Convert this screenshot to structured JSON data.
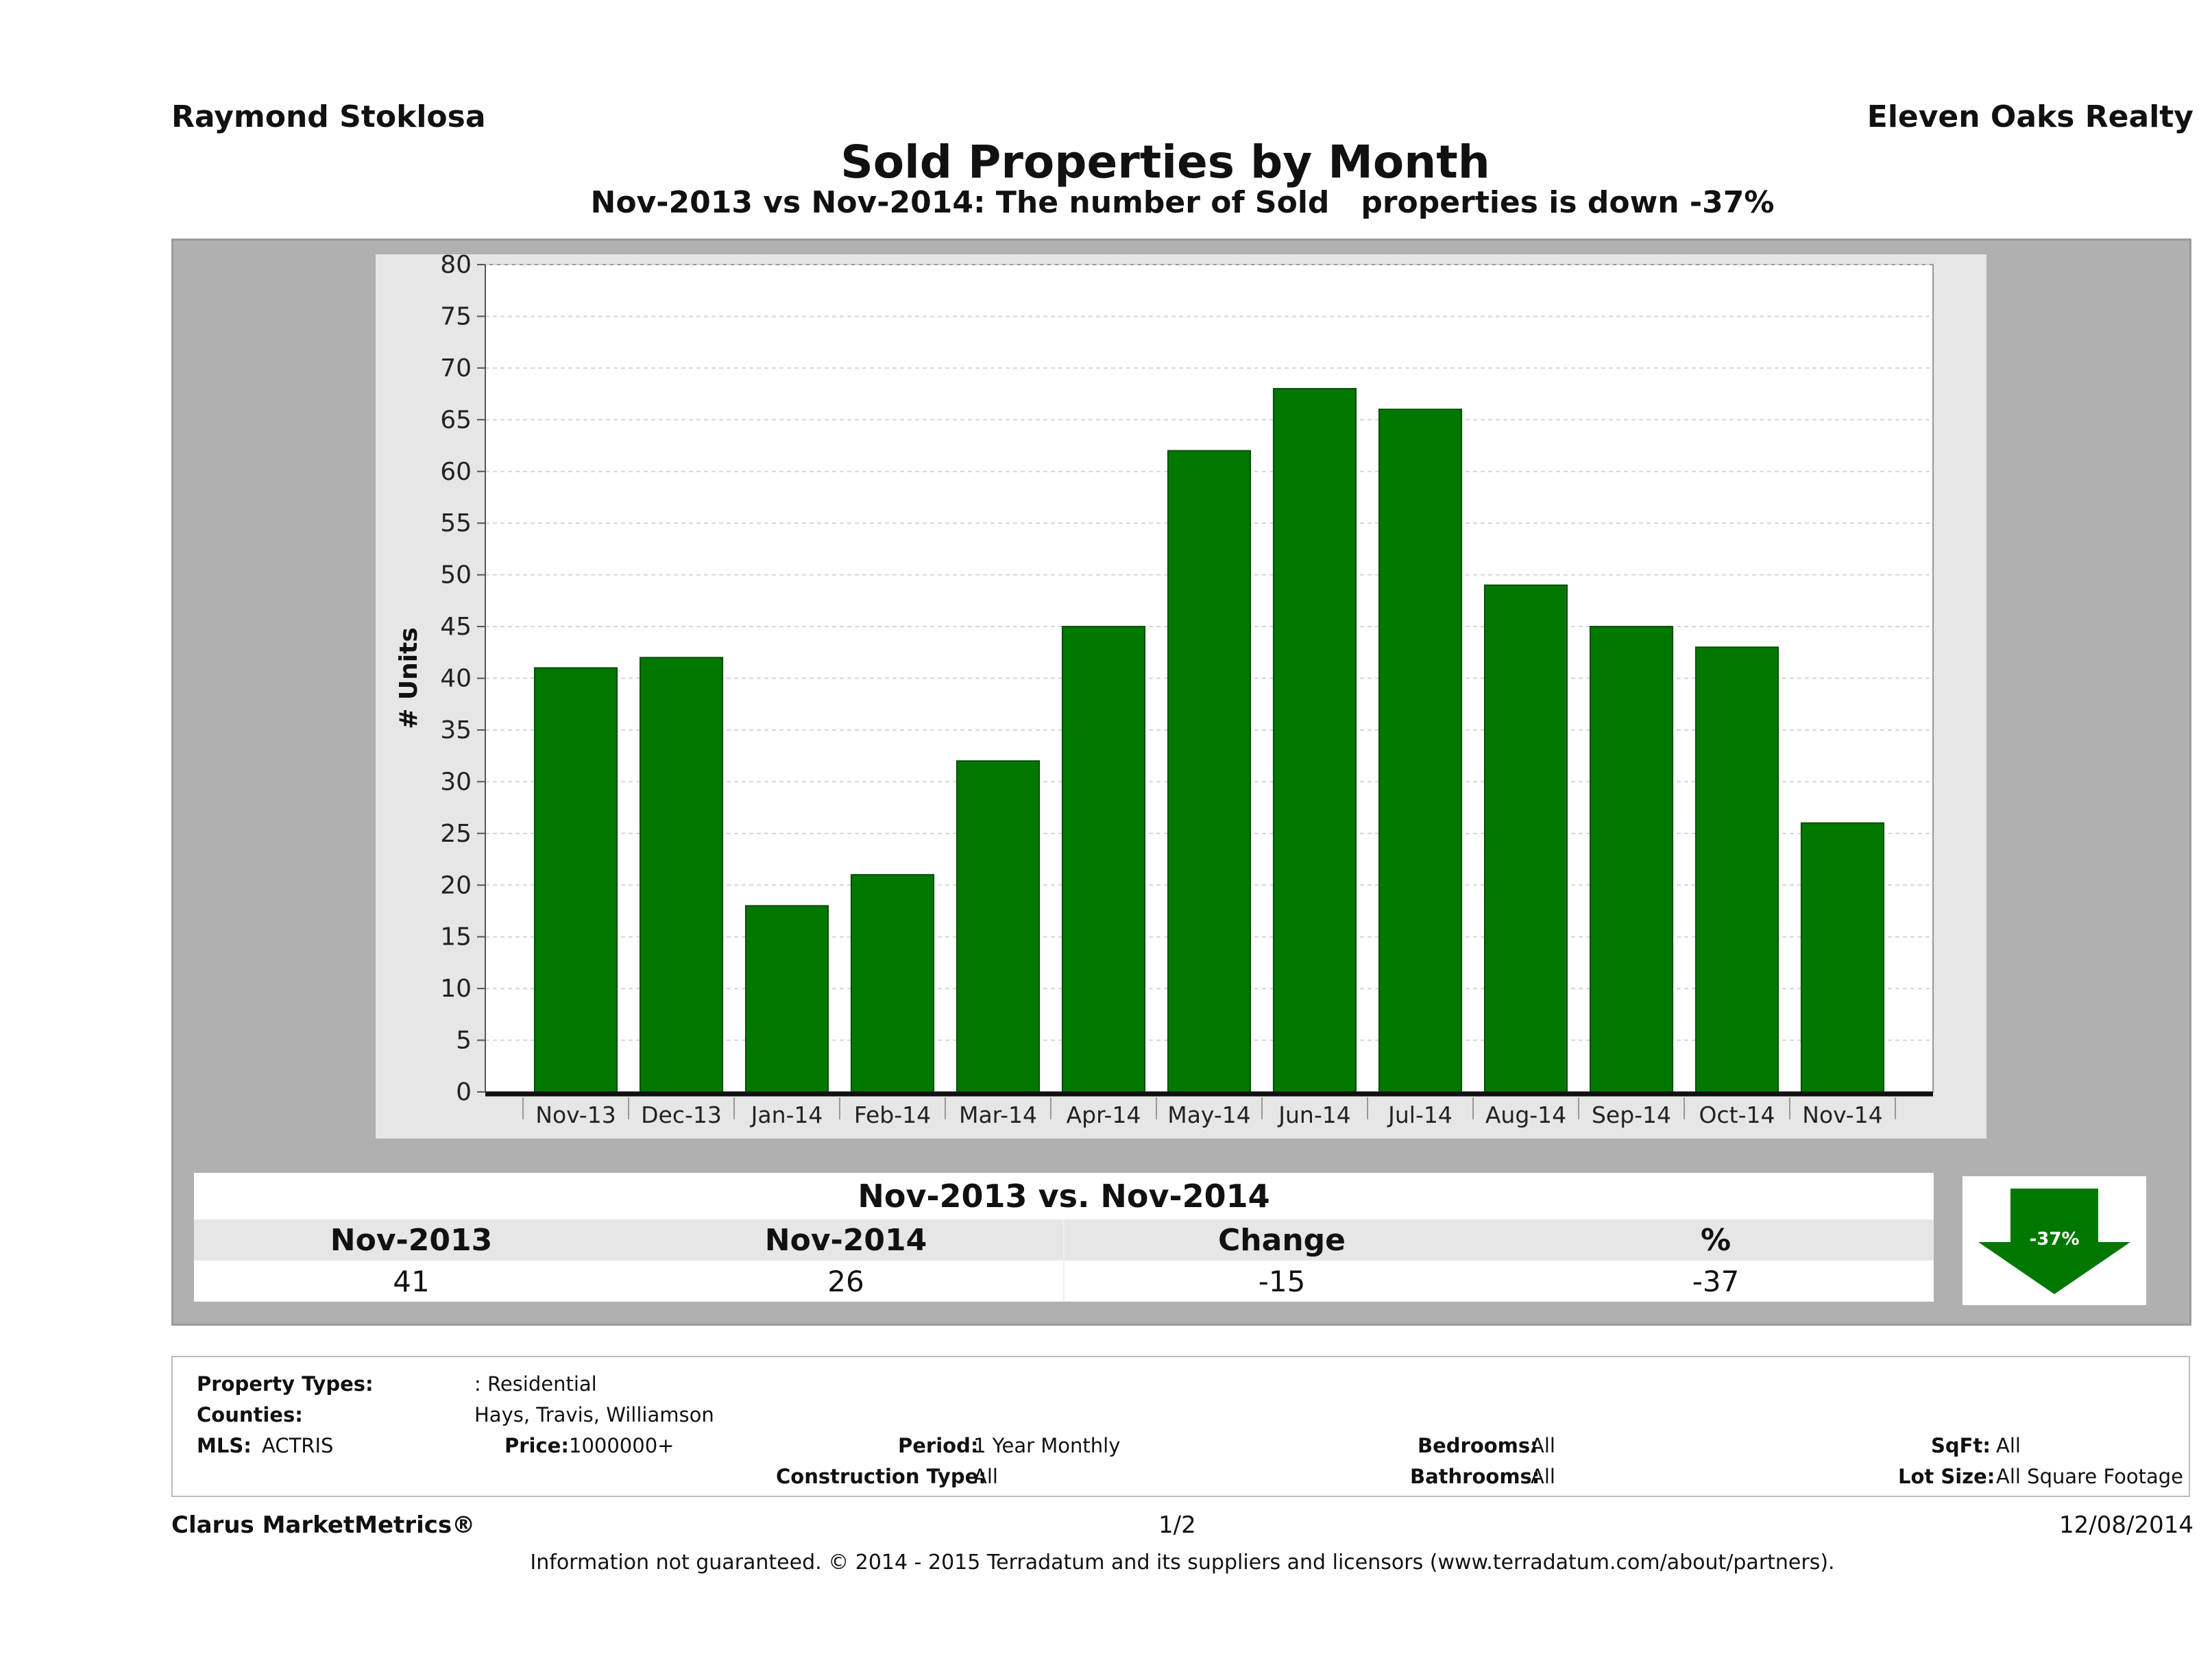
{
  "header": {
    "agent": "Raymond Stoklosa",
    "company": "Eleven Oaks Realty",
    "title": "Sold Properties by Month",
    "subtitle": "Nov-2013 vs Nov-2014: The number of Sold   properties is down -37%"
  },
  "chart_data": {
    "type": "bar",
    "categories": [
      "Nov-13",
      "Dec-13",
      "Jan-14",
      "Feb-14",
      "Mar-14",
      "Apr-14",
      "May-14",
      "Jun-14",
      "Jul-14",
      "Aug-14",
      "Sep-14",
      "Oct-14",
      "Nov-14"
    ],
    "values": [
      41,
      42,
      18,
      21,
      32,
      45,
      62,
      68,
      66,
      49,
      45,
      43,
      26
    ],
    "ylabel": "# Units",
    "ylim": [
      0,
      80
    ],
    "yticks": [
      0,
      5,
      10,
      15,
      20,
      25,
      30,
      35,
      40,
      45,
      50,
      55,
      60,
      65,
      70,
      75,
      80
    ],
    "bar_color": "#007800",
    "grid": true
  },
  "summary": {
    "title": "Nov-2013 vs. Nov-2014",
    "headers": [
      "Nov-2013",
      "Nov-2014",
      "Change",
      "%"
    ],
    "values": [
      "41",
      "26",
      "-15",
      "-37"
    ],
    "badge": "-37%",
    "badge_color": "#007800"
  },
  "criteria": {
    "property_types_label": "Property Types:",
    "property_types_value": ": Residential",
    "counties_label": "Counties:",
    "counties_value": "Hays, Travis, Williamson",
    "mls_label": "MLS:",
    "mls_value": "ACTRIS",
    "price_label": "Price:",
    "price_value": "1000000+",
    "period_label": "Period:",
    "period_value": "1 Year Monthly",
    "construction_label": "Construction Type:",
    "construction_value": "All",
    "bedrooms_label": "Bedrooms:",
    "bedrooms_value": "All",
    "bathrooms_label": "Bathrooms:",
    "bathrooms_value": "All",
    "sqft_label": "SqFt:",
    "sqft_value": "All",
    "lotsize_label": "Lot Size:",
    "lotsize_value": "All Square Footage"
  },
  "footer": {
    "brand": "Clarus MarketMetrics®",
    "page": "1/2",
    "date": "12/08/2014",
    "disclaimer": "Information not guaranteed. © 2014 - 2015 Terradatum and its suppliers and licensors (www.terradatum.com/about/partners)."
  }
}
